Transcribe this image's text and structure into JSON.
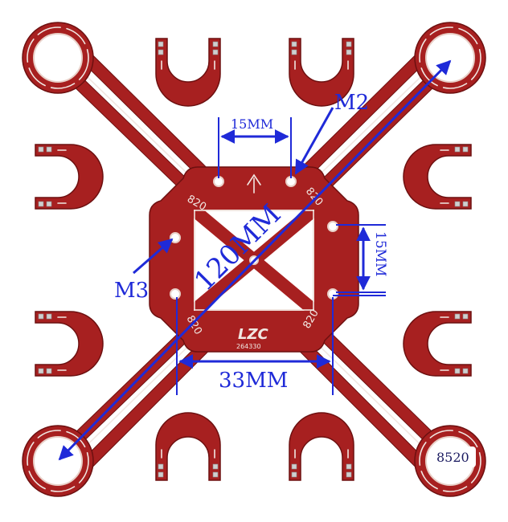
{
  "colors": {
    "board": "#a72020",
    "board_edge": "#6d1010",
    "silkscreen": "#f1e7e2",
    "dimension": "#1f2ad8",
    "background": "#ffffff"
  },
  "dimensions": {
    "diagonal": "120MM",
    "hole_spacing_top": "15MM",
    "hole_spacing_right": "15MM",
    "hole_spacing_bottom": "33MM"
  },
  "callouts": {
    "m2": "M2",
    "m3": "M3"
  },
  "board_marks": {
    "logo": "LZC",
    "serial": "264330",
    "motor_size_corner": "8520",
    "motor_marks": [
      "820",
      "820",
      "820",
      "820"
    ]
  }
}
